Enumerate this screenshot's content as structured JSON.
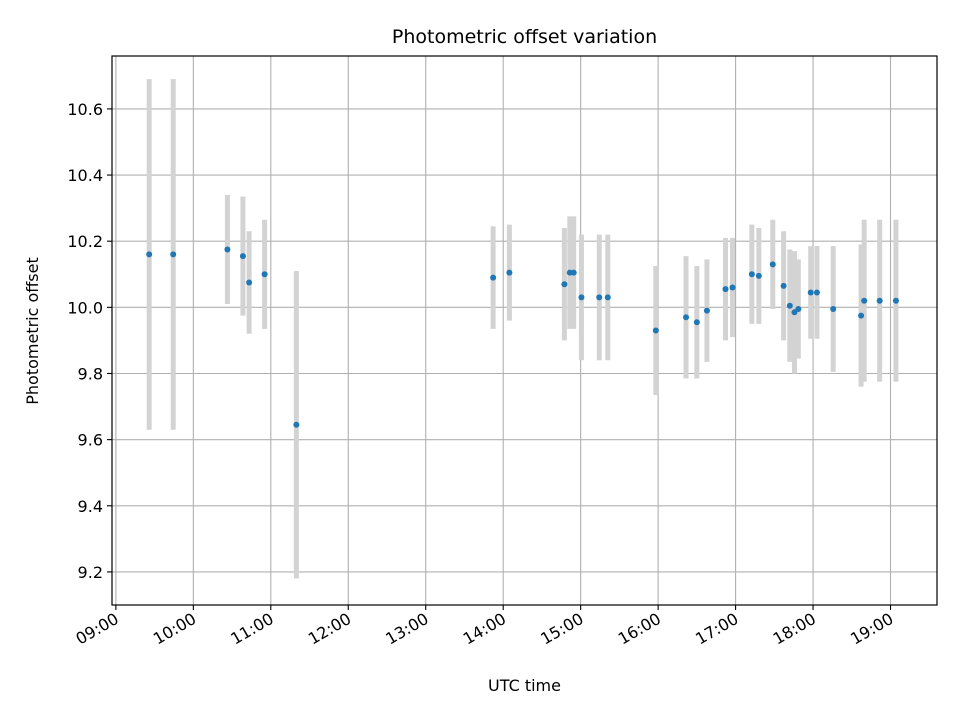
{
  "chart_data": {
    "type": "scatter",
    "title": "Photometric offset variation",
    "xlabel": "UTC time",
    "ylabel": "Photometric offset",
    "grid": true,
    "xlim_hours": [
      8.95,
      19.6
    ],
    "ylim": [
      9.1,
      10.76
    ],
    "x_ticks": [
      {
        "h": 9,
        "label": "09:00"
      },
      {
        "h": 10,
        "label": "10:00"
      },
      {
        "h": 11,
        "label": "11:00"
      },
      {
        "h": 12,
        "label": "12:00"
      },
      {
        "h": 13,
        "label": "13:00"
      },
      {
        "h": 14,
        "label": "14:00"
      },
      {
        "h": 15,
        "label": "15:00"
      },
      {
        "h": 16,
        "label": "16:00"
      },
      {
        "h": 17,
        "label": "17:00"
      },
      {
        "h": 18,
        "label": "18:00"
      },
      {
        "h": 19,
        "label": "19:00"
      }
    ],
    "y_ticks": [
      {
        "v": 9.2,
        "label": "9.2"
      },
      {
        "v": 9.4,
        "label": "9.4"
      },
      {
        "v": 9.6,
        "label": "9.6"
      },
      {
        "v": 9.8,
        "label": "9.8"
      },
      {
        "v": 10.0,
        "label": "10.0"
      },
      {
        "v": 10.2,
        "label": "10.2"
      },
      {
        "v": 10.4,
        "label": "10.4"
      },
      {
        "v": 10.6,
        "label": "10.6"
      }
    ],
    "point_color": "#1f77b4",
    "errorbar_color": "#d3d3d3",
    "points": [
      {
        "t": 9.43,
        "y": 10.16,
        "err": 0.53
      },
      {
        "t": 9.74,
        "y": 10.16,
        "err": 0.53
      },
      {
        "t": 10.44,
        "y": 10.175,
        "err": 0.165
      },
      {
        "t": 10.64,
        "y": 10.155,
        "err": 0.18
      },
      {
        "t": 10.72,
        "y": 10.075,
        "err": 0.155
      },
      {
        "t": 10.92,
        "y": 10.1,
        "err": 0.165
      },
      {
        "t": 11.33,
        "y": 9.645,
        "err": 0.465
      },
      {
        "t": 13.87,
        "y": 10.09,
        "err": 0.155
      },
      {
        "t": 14.08,
        "y": 10.105,
        "err": 0.145
      },
      {
        "t": 14.79,
        "y": 10.07,
        "err": 0.17
      },
      {
        "t": 14.86,
        "y": 10.105,
        "err": 0.17
      },
      {
        "t": 14.91,
        "y": 10.105,
        "err": 0.17
      },
      {
        "t": 15.01,
        "y": 10.03,
        "err": 0.19
      },
      {
        "t": 15.24,
        "y": 10.03,
        "err": 0.19
      },
      {
        "t": 15.35,
        "y": 10.03,
        "err": 0.19
      },
      {
        "t": 15.97,
        "y": 9.93,
        "err": 0.195
      },
      {
        "t": 16.36,
        "y": 9.97,
        "err": 0.185
      },
      {
        "t": 16.5,
        "y": 9.955,
        "err": 0.17
      },
      {
        "t": 16.63,
        "y": 9.99,
        "err": 0.155
      },
      {
        "t": 16.87,
        "y": 10.055,
        "err": 0.155
      },
      {
        "t": 16.96,
        "y": 10.06,
        "err": 0.15
      },
      {
        "t": 17.21,
        "y": 10.1,
        "err": 0.15
      },
      {
        "t": 17.3,
        "y": 10.095,
        "err": 0.145
      },
      {
        "t": 17.48,
        "y": 10.13,
        "err": 0.135
      },
      {
        "t": 17.62,
        "y": 10.065,
        "err": 0.165
      },
      {
        "t": 17.7,
        "y": 10.005,
        "err": 0.17
      },
      {
        "t": 17.76,
        "y": 9.985,
        "err": 0.185
      },
      {
        "t": 17.81,
        "y": 9.995,
        "err": 0.15
      },
      {
        "t": 17.97,
        "y": 10.045,
        "err": 0.14
      },
      {
        "t": 18.05,
        "y": 10.045,
        "err": 0.14
      },
      {
        "t": 18.26,
        "y": 9.995,
        "err": 0.19
      },
      {
        "t": 18.62,
        "y": 9.975,
        "err": 0.215
      },
      {
        "t": 18.66,
        "y": 10.02,
        "err": 0.245
      },
      {
        "t": 18.86,
        "y": 10.02,
        "err": 0.245
      },
      {
        "t": 19.07,
        "y": 10.02,
        "err": 0.245
      }
    ]
  }
}
